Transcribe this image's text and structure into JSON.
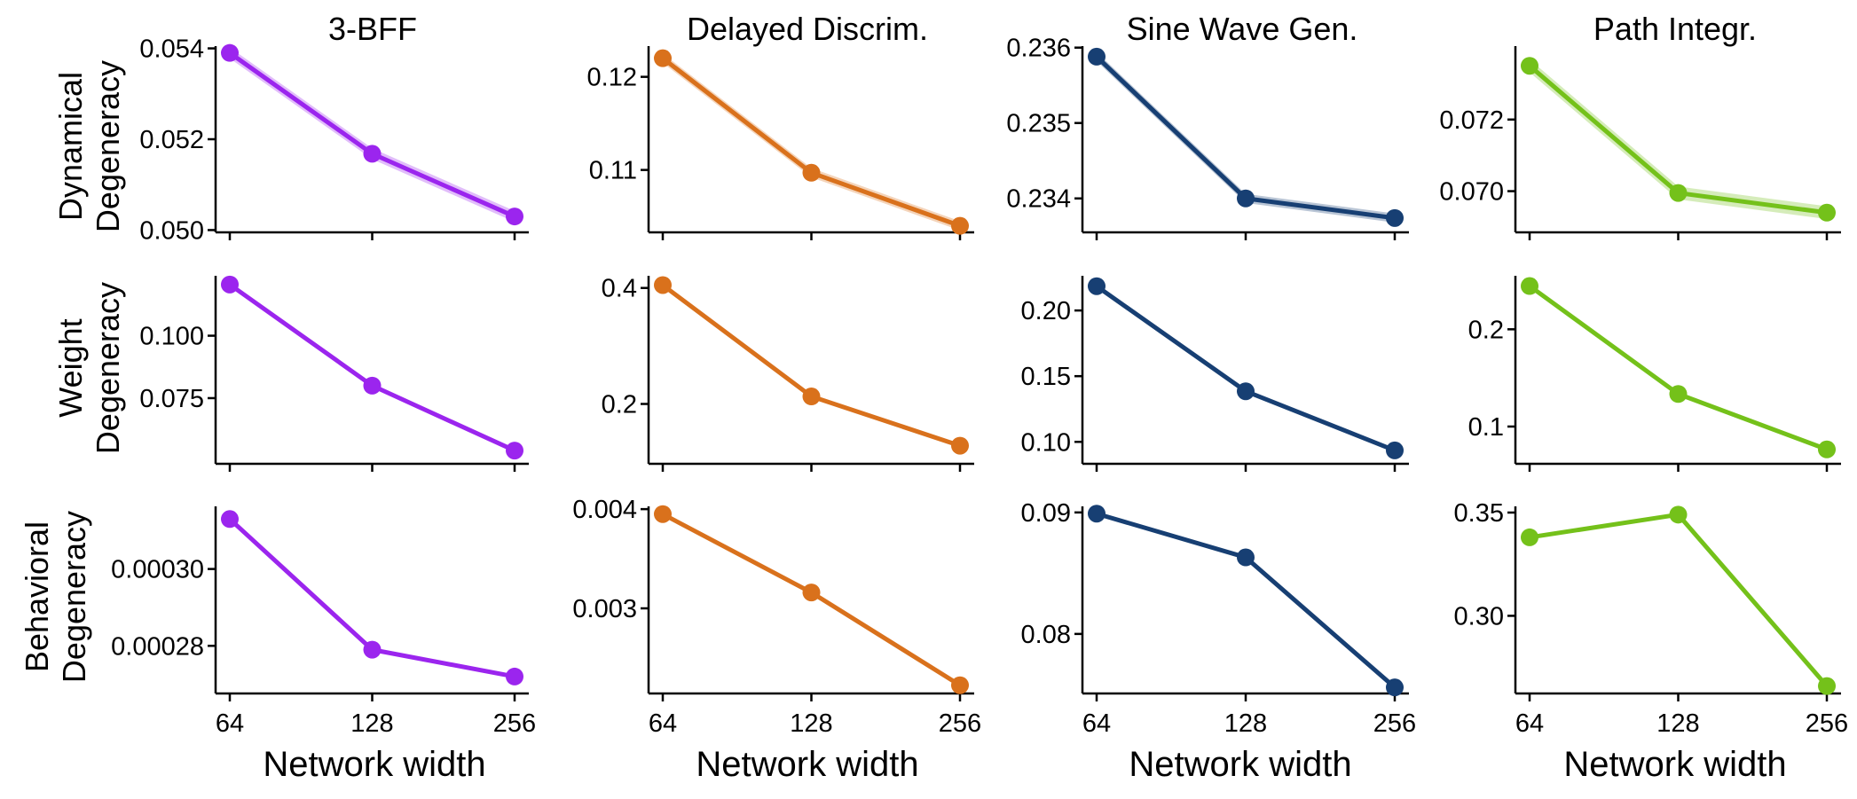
{
  "x_categories": [
    "64",
    "128",
    "256"
  ],
  "xlabel": "Network width",
  "columns": [
    {
      "title": "3-BFF",
      "color": "#9b25ee"
    },
    {
      "title": "Delayed Discrim.",
      "color": "#d9711c"
    },
    {
      "title": "Sine Wave Gen.",
      "color": "#173f73"
    },
    {
      "title": "Path Integr.",
      "color": "#74c11a"
    }
  ],
  "rows": [
    {
      "label_line1": "Dynamical",
      "label_line2": "Degeneracy"
    },
    {
      "label_line1": "Weight",
      "label_line2": "Degeneracy"
    },
    {
      "label_line1": "Behavioral",
      "label_line2": "Degeneracy"
    }
  ],
  "chart_data": [
    {
      "type": "line",
      "title": "3-BFF",
      "row": "Dynamical Degeneracy",
      "categories": [
        "64",
        "128",
        "256"
      ],
      "values": [
        0.0539,
        0.05168,
        0.0503
      ],
      "band": 0.00012,
      "ylim": [
        0.04995,
        0.05405
      ],
      "yticks": [
        0.05,
        0.052,
        0.054
      ],
      "yticklabels": [
        "0.050",
        "0.052",
        "0.054"
      ]
    },
    {
      "type": "line",
      "title": "Delayed Discrim.",
      "row": "Dynamical Degeneracy",
      "categories": [
        "64",
        "128",
        "256"
      ],
      "values": [
        0.122,
        0.1097,
        0.104
      ],
      "band": 0.0005,
      "ylim": [
        0.1033,
        0.1233
      ],
      "yticks": [
        0.11,
        0.12
      ],
      "yticklabels": [
        "0.11",
        "0.12"
      ]
    },
    {
      "type": "line",
      "title": "Sine Wave Gen.",
      "row": "Dynamical Degeneracy",
      "categories": [
        "64",
        "128",
        "256"
      ],
      "values": [
        0.23588,
        0.234,
        0.23374
      ],
      "band": 6e-05,
      "ylim": [
        0.23355,
        0.23602
      ],
      "yticks": [
        0.234,
        0.235,
        0.236
      ],
      "yticklabels": [
        "0.234",
        "0.235",
        "0.236"
      ]
    },
    {
      "type": "line",
      "title": "Path Integr.",
      "row": "Dynamical Degeneracy",
      "categories": [
        "64",
        "128",
        "256"
      ],
      "values": [
        0.0735,
        0.06995,
        0.0694
      ],
      "band": 0.00018,
      "ylim": [
        0.06885,
        0.07405
      ],
      "yticks": [
        0.07,
        0.072
      ],
      "yticklabels": [
        "0.070",
        "0.072"
      ]
    },
    {
      "type": "line",
      "title": "3-BFF",
      "row": "Weight Degeneracy",
      "categories": [
        "64",
        "128",
        "256"
      ],
      "values": [
        0.1205,
        0.08,
        0.054
      ],
      "ylim": [
        0.0487,
        0.124
      ],
      "yticks": [
        0.075,
        0.1
      ],
      "yticklabels": [
        "0.075",
        "0.100"
      ]
    },
    {
      "type": "line",
      "title": "Delayed Discrim.",
      "row": "Weight Degeneracy",
      "categories": [
        "64",
        "128",
        "256"
      ],
      "values": [
        0.405,
        0.213,
        0.128
      ],
      "ylim": [
        0.0968,
        0.421
      ],
      "yticks": [
        0.2,
        0.4
      ],
      "yticklabels": [
        "0.2",
        "0.4"
      ]
    },
    {
      "type": "line",
      "title": "Sine Wave Gen.",
      "row": "Weight Degeneracy",
      "categories": [
        "64",
        "128",
        "256"
      ],
      "values": [
        0.2185,
        0.1385,
        0.0935
      ],
      "ylim": [
        0.0833,
        0.2264
      ],
      "yticks": [
        0.1,
        0.15,
        0.2
      ],
      "yticklabels": [
        "0.10",
        "0.15",
        "0.20"
      ]
    },
    {
      "type": "line",
      "title": "Path Integr.",
      "row": "Weight Degeneracy",
      "categories": [
        "64",
        "128",
        "256"
      ],
      "values": [
        0.2445,
        0.1335,
        0.0765
      ],
      "ylim": [
        0.0617,
        0.255
      ],
      "yticks": [
        0.1,
        0.2
      ],
      "yticklabels": [
        "0.1",
        "0.2"
      ]
    },
    {
      "type": "line",
      "title": "3-BFF",
      "row": "Behavioral Degeneracy",
      "categories": [
        "64",
        "128",
        "256"
      ],
      "values": [
        0.000313,
        0.000279,
        0.000272
      ],
      "ylim": [
        0.0002676,
        0.0003163
      ],
      "yticks": [
        0.00028,
        0.0003
      ],
      "yticklabels": [
        "0.00028",
        "0.00030"
      ]
    },
    {
      "type": "line",
      "title": "Delayed Discrim.",
      "row": "Behavioral Degeneracy",
      "categories": [
        "64",
        "128",
        "256"
      ],
      "values": [
        0.00395,
        0.00316,
        0.002225
      ],
      "ylim": [
        0.002142,
        0.004028
      ],
      "yticks": [
        0.003,
        0.004
      ],
      "yticklabels": [
        "0.003",
        "0.004"
      ]
    },
    {
      "type": "line",
      "title": "Sine Wave Gen.",
      "row": "Behavioral Degeneracy",
      "categories": [
        "64",
        "128",
        "256"
      ],
      "values": [
        0.0899,
        0.0863,
        0.0756
      ],
      "ylim": [
        0.0751,
        0.0905
      ],
      "yticks": [
        0.08,
        0.09
      ],
      "yticklabels": [
        "0.08",
        "0.09"
      ]
    },
    {
      "type": "line",
      "title": "Path Integr.",
      "row": "Behavioral Degeneracy",
      "categories": [
        "64",
        "128",
        "256"
      ],
      "values": [
        0.338,
        0.349,
        0.266
      ],
      "ylim": [
        0.2624,
        0.353
      ],
      "yticks": [
        0.3,
        0.35
      ],
      "yticklabels": [
        "0.30",
        "0.35"
      ]
    }
  ]
}
